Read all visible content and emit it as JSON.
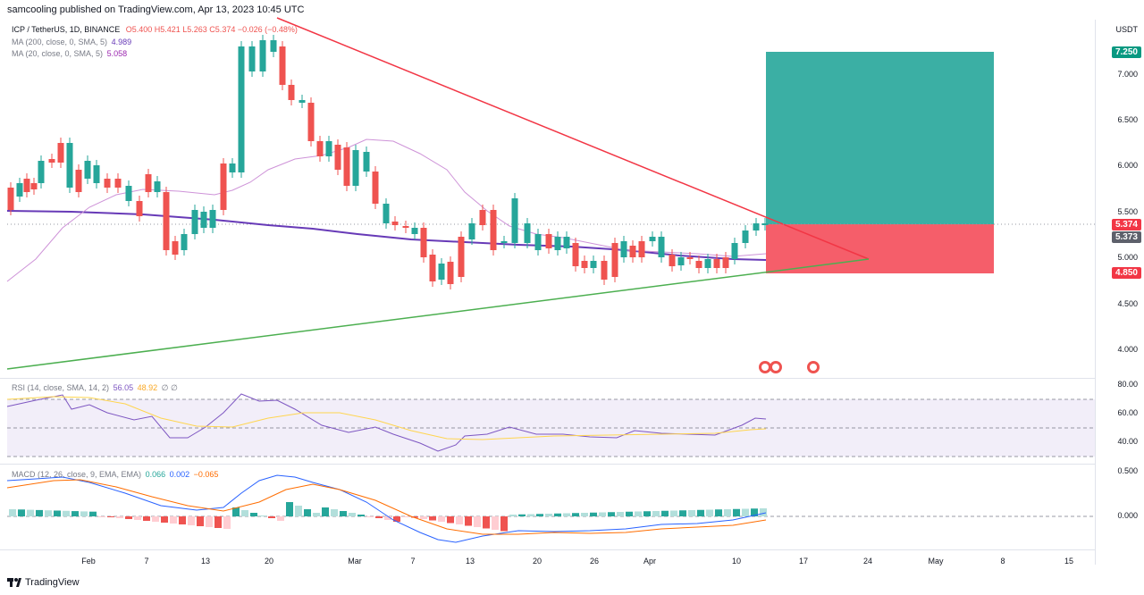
{
  "header": {
    "publisher": "samcooling published on TradingView.com, Apr 13, 2023 10:45 UTC"
  },
  "legend": {
    "symbol": "ICP / TetherUS, 1D, BINANCE",
    "ohlc": "O5.400 H5.421 L5.263 C5.374 −0.026 (−0.48%)",
    "ma200_label": "MA (200, close, 0, SMA, 5)",
    "ma200_value": "4.989",
    "ma20_label": "MA (20, close, 0, SMA, 5)",
    "ma20_value": "5.058",
    "rsi_label": "RSI (14, close, SMA, 14, 2)",
    "rsi_value": "56.05",
    "rsi_ma_value": "48.92",
    "rsi_extra": "∅ ∅",
    "macd_label": "MACD (12, 26, close, 9, EMA, EMA)",
    "macd_value": "0.066",
    "macd_signal": "0.002",
    "macd_hist": "−0.065"
  },
  "price_axis": {
    "currency": "USDT",
    "ticks": [
      "7.000",
      "6.500",
      "6.000",
      "5.500",
      "5.000",
      "4.500",
      "4.000"
    ],
    "target_badge": "7.250",
    "last_badge": "5.374",
    "prev_badge": "5.373",
    "stop_badge": "4.850"
  },
  "rsi_axis": {
    "ticks": [
      "80.00",
      "60.00",
      "40.00"
    ]
  },
  "macd_axis": {
    "ticks": [
      "0.500",
      "0.000"
    ]
  },
  "time_axis": {
    "ticks": [
      "Feb",
      "7",
      "13",
      "20",
      "Mar",
      "7",
      "13",
      "20",
      "26",
      "Apr",
      "10",
      "17",
      "24",
      "May",
      "8",
      "15"
    ]
  },
  "footer": {
    "brand": "TradingView"
  },
  "colors": {
    "up": "#26a69a",
    "down": "#ef5350",
    "ma200": "#673ab7",
    "ma20": "#ce93d8",
    "target_zone": "#26a69a",
    "stop_zone": "#f23645",
    "rsi": "#7e57c2",
    "rsi_ma": "#ffd54f",
    "macd": "#2962ff",
    "signal": "#ff6d00"
  }
}
